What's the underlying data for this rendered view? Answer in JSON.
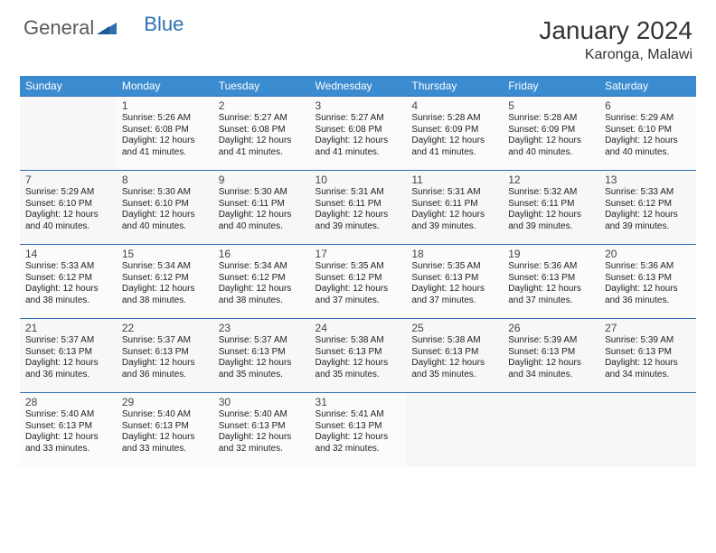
{
  "logo": {
    "general": "General",
    "blue": "Blue"
  },
  "title": "January 2024",
  "location": "Karonga, Malawi",
  "colors": {
    "header_bg": "#3b8bd0",
    "header_text": "#ffffff",
    "border": "#2f6fb0",
    "logo_gray": "#5a5a5a",
    "logo_blue": "#2f6fb0",
    "text": "#222222",
    "daynum": "#444444",
    "row_bg_a": "#fbfbfb",
    "row_bg_b": "#f7f7f7"
  },
  "table": {
    "columns": [
      "Sunday",
      "Monday",
      "Tuesday",
      "Wednesday",
      "Thursday",
      "Friday",
      "Saturday"
    ],
    "first_day_index": 1,
    "days": [
      {
        "n": 1,
        "sr": "5:26 AM",
        "ss": "6:08 PM",
        "dl": "12 hours and 41 minutes."
      },
      {
        "n": 2,
        "sr": "5:27 AM",
        "ss": "6:08 PM",
        "dl": "12 hours and 41 minutes."
      },
      {
        "n": 3,
        "sr": "5:27 AM",
        "ss": "6:08 PM",
        "dl": "12 hours and 41 minutes."
      },
      {
        "n": 4,
        "sr": "5:28 AM",
        "ss": "6:09 PM",
        "dl": "12 hours and 41 minutes."
      },
      {
        "n": 5,
        "sr": "5:28 AM",
        "ss": "6:09 PM",
        "dl": "12 hours and 40 minutes."
      },
      {
        "n": 6,
        "sr": "5:29 AM",
        "ss": "6:10 PM",
        "dl": "12 hours and 40 minutes."
      },
      {
        "n": 7,
        "sr": "5:29 AM",
        "ss": "6:10 PM",
        "dl": "12 hours and 40 minutes."
      },
      {
        "n": 8,
        "sr": "5:30 AM",
        "ss": "6:10 PM",
        "dl": "12 hours and 40 minutes."
      },
      {
        "n": 9,
        "sr": "5:30 AM",
        "ss": "6:11 PM",
        "dl": "12 hours and 40 minutes."
      },
      {
        "n": 10,
        "sr": "5:31 AM",
        "ss": "6:11 PM",
        "dl": "12 hours and 39 minutes."
      },
      {
        "n": 11,
        "sr": "5:31 AM",
        "ss": "6:11 PM",
        "dl": "12 hours and 39 minutes."
      },
      {
        "n": 12,
        "sr": "5:32 AM",
        "ss": "6:11 PM",
        "dl": "12 hours and 39 minutes."
      },
      {
        "n": 13,
        "sr": "5:33 AM",
        "ss": "6:12 PM",
        "dl": "12 hours and 39 minutes."
      },
      {
        "n": 14,
        "sr": "5:33 AM",
        "ss": "6:12 PM",
        "dl": "12 hours and 38 minutes."
      },
      {
        "n": 15,
        "sr": "5:34 AM",
        "ss": "6:12 PM",
        "dl": "12 hours and 38 minutes."
      },
      {
        "n": 16,
        "sr": "5:34 AM",
        "ss": "6:12 PM",
        "dl": "12 hours and 38 minutes."
      },
      {
        "n": 17,
        "sr": "5:35 AM",
        "ss": "6:12 PM",
        "dl": "12 hours and 37 minutes."
      },
      {
        "n": 18,
        "sr": "5:35 AM",
        "ss": "6:13 PM",
        "dl": "12 hours and 37 minutes."
      },
      {
        "n": 19,
        "sr": "5:36 AM",
        "ss": "6:13 PM",
        "dl": "12 hours and 37 minutes."
      },
      {
        "n": 20,
        "sr": "5:36 AM",
        "ss": "6:13 PM",
        "dl": "12 hours and 36 minutes."
      },
      {
        "n": 21,
        "sr": "5:37 AM",
        "ss": "6:13 PM",
        "dl": "12 hours and 36 minutes."
      },
      {
        "n": 22,
        "sr": "5:37 AM",
        "ss": "6:13 PM",
        "dl": "12 hours and 36 minutes."
      },
      {
        "n": 23,
        "sr": "5:37 AM",
        "ss": "6:13 PM",
        "dl": "12 hours and 35 minutes."
      },
      {
        "n": 24,
        "sr": "5:38 AM",
        "ss": "6:13 PM",
        "dl": "12 hours and 35 minutes."
      },
      {
        "n": 25,
        "sr": "5:38 AM",
        "ss": "6:13 PM",
        "dl": "12 hours and 35 minutes."
      },
      {
        "n": 26,
        "sr": "5:39 AM",
        "ss": "6:13 PM",
        "dl": "12 hours and 34 minutes."
      },
      {
        "n": 27,
        "sr": "5:39 AM",
        "ss": "6:13 PM",
        "dl": "12 hours and 34 minutes."
      },
      {
        "n": 28,
        "sr": "5:40 AM",
        "ss": "6:13 PM",
        "dl": "12 hours and 33 minutes."
      },
      {
        "n": 29,
        "sr": "5:40 AM",
        "ss": "6:13 PM",
        "dl": "12 hours and 33 minutes."
      },
      {
        "n": 30,
        "sr": "5:40 AM",
        "ss": "6:13 PM",
        "dl": "12 hours and 32 minutes."
      },
      {
        "n": 31,
        "sr": "5:41 AM",
        "ss": "6:13 PM",
        "dl": "12 hours and 32 minutes."
      }
    ],
    "labels": {
      "sunrise": "Sunrise:",
      "sunset": "Sunset:",
      "daylight": "Daylight:"
    }
  }
}
